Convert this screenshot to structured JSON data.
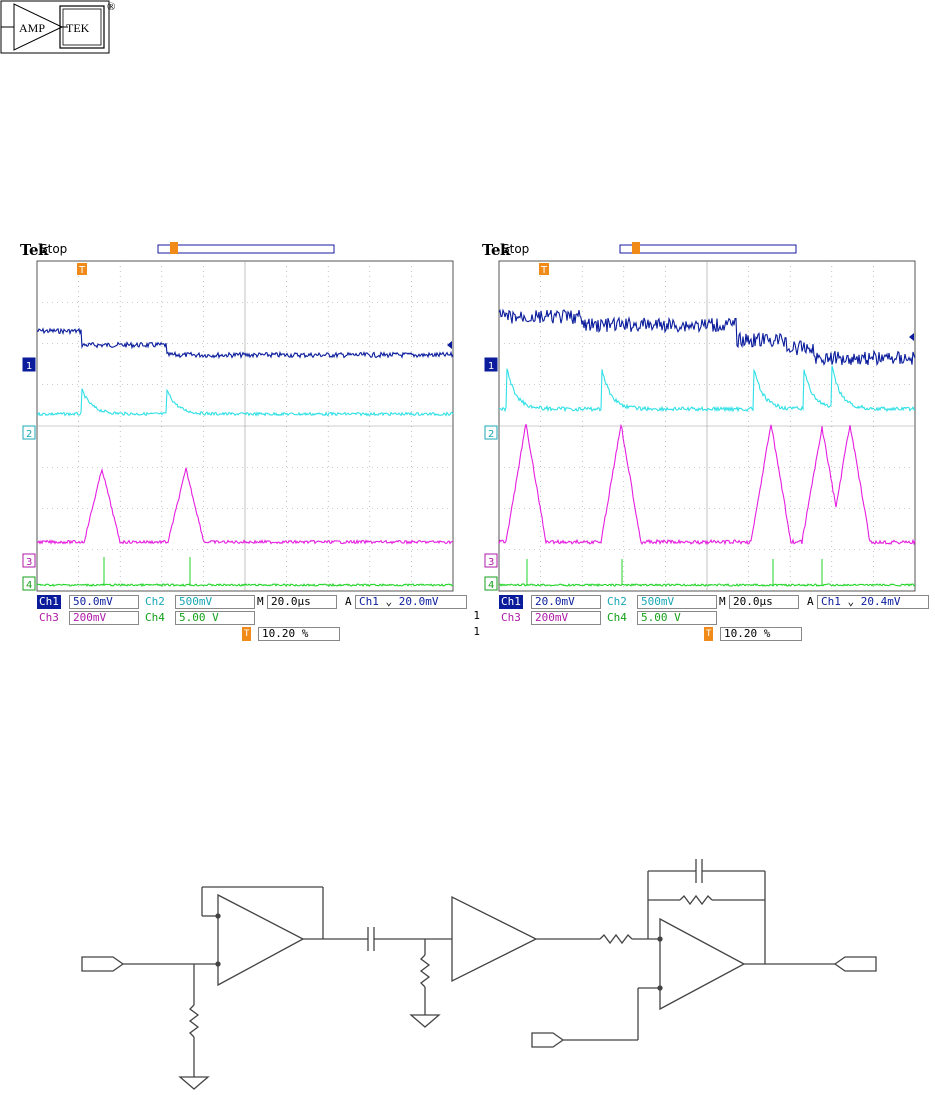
{
  "logo": {
    "left_text": "AMP",
    "right_text": "TEK",
    "registered": "®"
  },
  "scopes": [
    {
      "brand": "Tek",
      "status": "Stop",
      "trigger_marker": "T",
      "channel_markers": [
        "1",
        "2",
        "3",
        "4"
      ],
      "readout": {
        "ch1_label": "Ch1",
        "ch1_scale": "50.0mV",
        "ch2_label": "Ch2",
        "ch2_scale": "500mV",
        "ch3_label": "Ch3",
        "ch3_scale": "200mV",
        "ch4_label": "Ch4",
        "ch4_scale": "5.00 V",
        "timebase_label": "M",
        "timebase": "20.0µs",
        "trigger_mode": "A",
        "trigger_source": "Ch1",
        "trigger_slope": "⌄",
        "trigger_level": "20.0mV",
        "trigger_position": "10.20 %",
        "right_1": "1",
        "right_2": "1"
      },
      "waveform": {
        "ch1_steps": 3,
        "pulse_count": 2
      }
    },
    {
      "brand": "Tek",
      "status": "Stop",
      "trigger_marker": "T",
      "channel_markers": [
        "1",
        "2",
        "3",
        "4"
      ],
      "readout": {
        "ch1_label": "Ch1",
        "ch1_scale": "20.0mV",
        "ch2_label": "Ch2",
        "ch2_scale": "500mV",
        "ch3_label": "Ch3",
        "ch3_scale": "200mV",
        "ch4_label": "Ch4",
        "ch4_scale": "5.00 V",
        "timebase_label": "M",
        "timebase": "20.0µs",
        "trigger_mode": "A",
        "trigger_source": "Ch1",
        "trigger_slope": "⌄",
        "trigger_level": "20.4mV",
        "trigger_position": "10.20 %",
        "right_1": "1",
        "right_2": "1"
      },
      "waveform": {
        "ch1_steps": 5,
        "pulse_count": 5
      }
    }
  ],
  "colors": {
    "ch1": "#0a1c9c",
    "ch2": "#2fe0e6",
    "ch3": "#e51ee0",
    "ch4": "#22d428",
    "trigger": "#f08a18",
    "grid": "#9a9a9a"
  }
}
